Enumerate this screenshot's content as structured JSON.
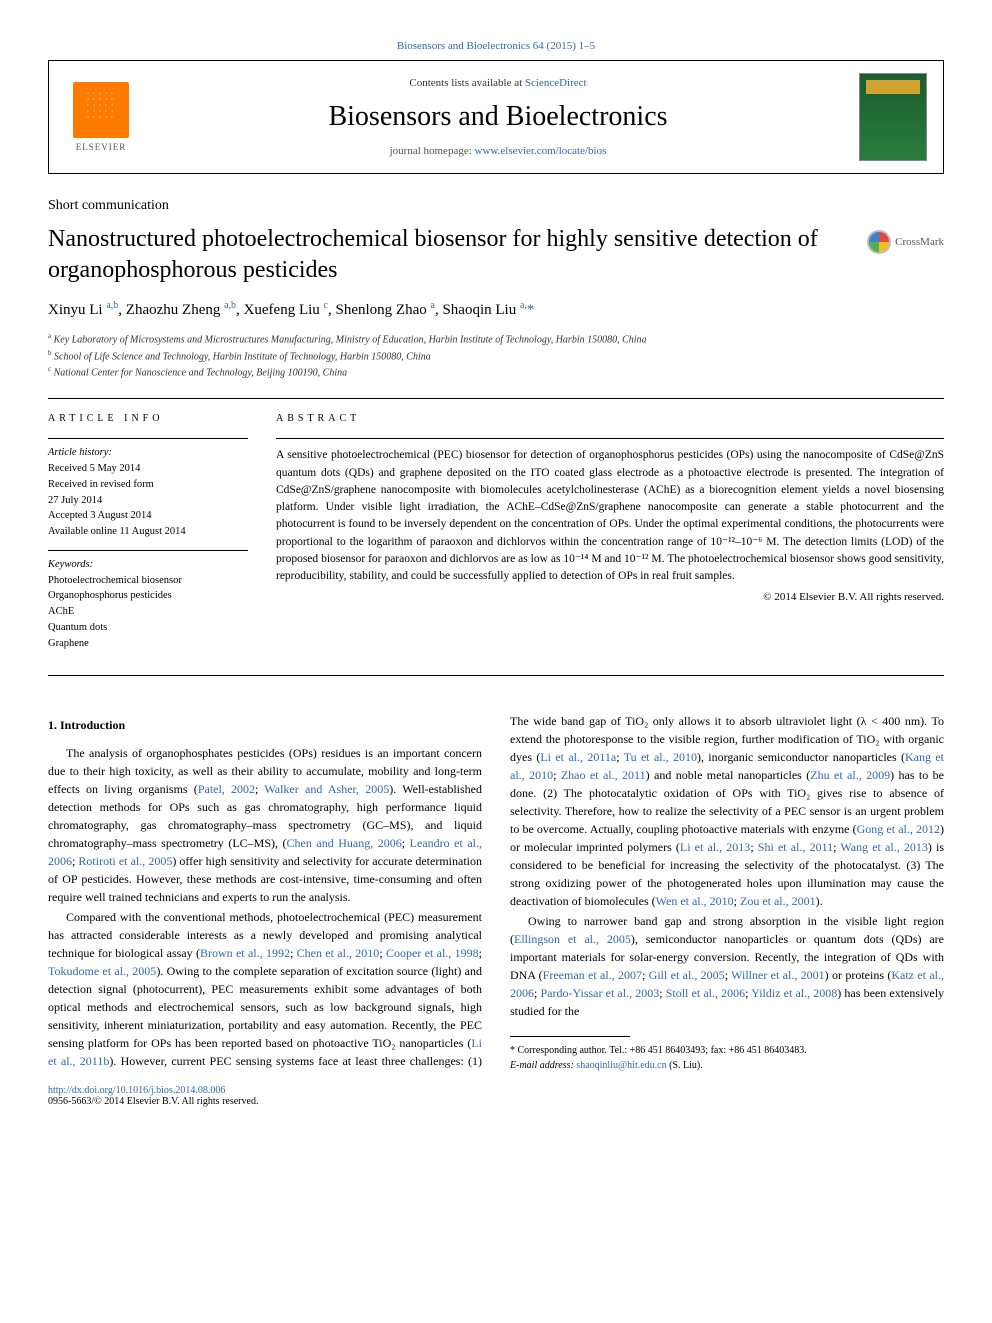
{
  "journal": {
    "citation": "Biosensors and Bioelectronics 64 (2015) 1–5",
    "contents_prefix": "Contents lists available at ",
    "contents_link": "ScienceDirect",
    "name": "Biosensors and Bioelectronics",
    "homepage_prefix": "journal homepage: ",
    "homepage_url": "www.elsevier.com/locate/bios",
    "publisher": "ELSEVIER"
  },
  "article": {
    "type": "Short communication",
    "title": "Nanostructured photoelectrochemical biosensor for highly sensitive detection of organophosphorous pesticides",
    "crossmark": "CrossMark"
  },
  "authors_html": "Xinyu Li <sup>a,b</sup>, Zhaozhu Zheng <sup>a,b</sup>, Xuefeng Liu <sup>c</sup>, Shenlong Zhao <sup>a</sup>, Shaoqin Liu <sup>a,</sup><span class='ast'>*</span>",
  "affiliations": [
    {
      "sup": "a",
      "text": "Key Laboratory of Microsystems and Microstructures Manufacturing, Ministry of Education, Harbin Institute of Technology, Harbin 150080, China"
    },
    {
      "sup": "b",
      "text": "School of Life Science and Technology, Harbin Institute of Technology, Harbin 150080, China"
    },
    {
      "sup": "c",
      "text": "National Center for Nanoscience and Technology, Beijing 100190, China"
    }
  ],
  "article_info": {
    "heading": "article info",
    "history_label": "Article history:",
    "history": [
      "Received 5 May 2014",
      "Received in revised form",
      "27 July 2014",
      "Accepted 3 August 2014",
      "Available online 11 August 2014"
    ],
    "keywords_label": "Keywords:",
    "keywords": [
      "Photoelectrochemical biosensor",
      "Organophosphorus pesticides",
      "AChE",
      "Quantum dots",
      "Graphene"
    ]
  },
  "abstract": {
    "heading": "abstract",
    "text": "A sensitive photoelectrochemical (PEC) biosensor for detection of organophosphorus pesticides (OPs) using the nanocomposite of CdSe@ZnS quantum dots (QDs) and graphene deposited on the ITO coated glass electrode as a photoactive electrode is presented. The integration of CdSe@ZnS/graphene nanocomposite with biomolecules acetylcholinesterase (AChE) as a biorecognition element yields a novel biosensing platform. Under visible light irradiation, the AChE–CdSe@ZnS/graphene nanocomposite can generate a stable photocurrent and the photocurrent is found to be inversely dependent on the concentration of OPs. Under the optimal experimental conditions, the photocurrents were proportional to the logarithm of paraoxon and dichlorvos within the concentration range of 10⁻¹²–10⁻⁶ M. The detection limits (LOD) of the proposed biosensor for paraoxon and dichlorvos are as low as 10⁻¹⁴ M and 10⁻¹² M. The photoelectrochemical biosensor shows good sensitivity, reproducibility, stability, and could be successfully applied to detection of OPs in real fruit samples.",
    "copyright": "© 2014 Elsevier B.V. All rights reserved."
  },
  "body": {
    "section_heading": "1.  Introduction",
    "p1": "The analysis of organophosphates pesticides (OPs) residues is an important concern due to their high toxicity, as well as their ability to accumulate, mobility and long-term effects on living organisms (",
    "p1_ref1": "Patel, 2002",
    "p1_mid1": "; ",
    "p1_ref2": "Walker and Asher, 2005",
    "p1_cont": "). Well-established detection methods for OPs such as gas chromatography, high performance liquid chromatography, gas chromatography–mass spectrometry (GC–MS), and liquid chromatography–mass spectrometry (LC–MS), (",
    "p1_ref3": "Chen and Huang, 2006",
    "p1_mid2": "; ",
    "p1_ref4": "Leandro et al., 2006",
    "p1_mid3": "; ",
    "p1_ref5": "Rotiroti et al., 2005",
    "p1_end": ") offer high sensitivity and selectivity for accurate determination of OP pesticides. However, these methods are cost-intensive, time-consuming and often require well trained technicians and experts to run the analysis.",
    "p2": "Compared with the conventional methods, photoelectrochemical (PEC) measurement has attracted considerable interests as a newly developed and promising analytical technique for biological assay (",
    "p2_ref1": "Brown et al., 1992",
    "p2_m1": "; ",
    "p2_ref2": "Chen et al., 2010",
    "p2_m2": "; ",
    "p2_ref3": "Cooper et al., 1998",
    "p2_m3": "; ",
    "p2_ref4": "Tokudome et al., 2005",
    "p2_end": "). Owing to the complete separation of excitation source (light) and detection signal (photocurrent), PEC measurements exhibit some advantages of both optical methods and electrochemical sensors, such as low background signals, high ",
    "p3a": "sensitivity, inherent miniaturization, portability and easy automation. Recently, the PEC sensing platform for OPs has been reported based on photoactive TiO₂ nanoparticles (",
    "p3_ref1": "Li et al., 2011b",
    "p3b": "). However, current PEC sensing systems face at least three challenges: (1) The wide band gap of TiO₂ only allows it to absorb ultraviolet light (λ < 400 nm). To extend the photoresponse to the visible region, further modification of TiO₂ with organic dyes (",
    "p3_ref2": "Li et al., 2011a",
    "p3_m2": "; ",
    "p3_ref3": "Tu et al., 2010",
    "p3c": "), inorganic semiconductor nanoparticles (",
    "p3_ref4": "Kang et al., 2010",
    "p3_m3": "; ",
    "p3_ref5": "Zhao et al., 2011",
    "p3d": ") and noble metal nanoparticles (",
    "p3_ref6": "Zhu et al., 2009",
    "p3e": ") has to be done. (2) The photocatalytic oxidation of OPs with TiO₂ gives rise to absence of selectivity. Therefore, how to realize the selectivity of a PEC sensor is an urgent problem to be overcome. Actually, coupling photoactive materials with enzyme (",
    "p3_ref7": "Gong et al., 2012",
    "p3f": ") or molecular imprinted polymers (",
    "p3_ref8": "Li et al., 2013",
    "p3_m4": "; ",
    "p3_ref9": "Shi et al., 2011",
    "p3_m5": "; ",
    "p3_ref10": "Wang et al., 2013",
    "p3g": ") is considered to be beneficial for increasing the selectivity of the photocatalyst. (3) The strong oxidizing power of the photogenerated holes upon illumination may cause the deactivation of biomolecules (",
    "p3_ref11": "Wen et al., 2010",
    "p3_m6": "; ",
    "p3_ref12": "Zou et al., 2001",
    "p3h": ").",
    "p4a": "Owing to narrower band gap and strong absorption in the visible light region (",
    "p4_ref1": "Ellingson et al., 2005",
    "p4b": "), semiconductor nanoparticles or quantum dots (QDs) are important materials for solar-energy conversion. Recently, the integration of QDs with DNA (",
    "p4_ref2": "Freeman et al., 2007",
    "p4_m1": "; ",
    "p4_ref3": "Gill et al., 2005",
    "p4_m2": "; ",
    "p4_ref4": "Willner et al., 2001",
    "p4c": ") or proteins (",
    "p4_ref5": "Katz et al., 2006",
    "p4_m3": "; ",
    "p4_ref6": "Pardo-Yissar et al., 2003",
    "p4_m4": "; ",
    "p4_ref7": "Stoll et al., 2006",
    "p4_m5": "; ",
    "p4_ref8": "Yildiz et al., 2008",
    "p4d": ") has been extensively studied for the"
  },
  "footer": {
    "corresponding": "* Corresponding author. Tel.: +86 451 86403493; fax: +86 451 86403483.",
    "email_label": "E-mail address: ",
    "email": "shaoqinliu@hit.edu.cn",
    "email_suffix": " (S. Liu).",
    "doi": "http://dx.doi.org/10.1016/j.bios.2014.08.006",
    "issn": "0956-5663/© 2014 Elsevier B.V. All rights reserved."
  },
  "colors": {
    "link": "#3168b0",
    "elsevier_orange": "#ff7a00",
    "text": "#000000",
    "cover_green": "#1a5c2e"
  }
}
